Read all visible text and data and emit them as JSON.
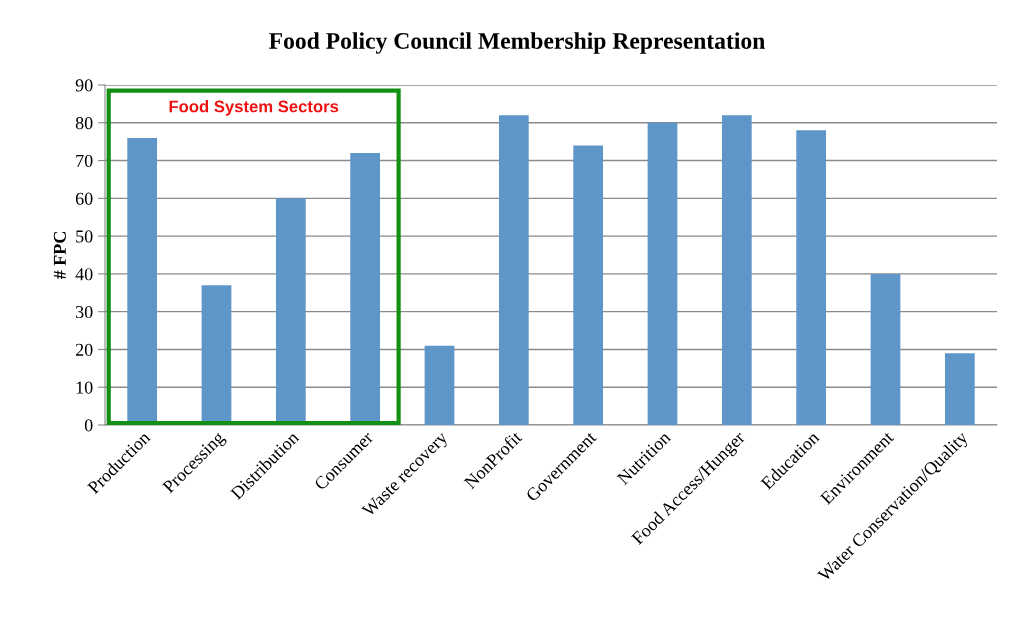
{
  "chart_data": {
    "type": "bar",
    "title": "Food Policy Council Membership Representation",
    "ylabel": "# FPC",
    "categories": [
      "Production",
      "Processing",
      "Distribution",
      "Consumer",
      "Waste recovery",
      "NonProfit",
      "Government",
      "Nutrition",
      "Food Access/Hunger",
      "Education",
      "Environment",
      "Water Conservation/Quality"
    ],
    "values": [
      76,
      37,
      60,
      72,
      21,
      82,
      74,
      80,
      82,
      78,
      40,
      19
    ],
    "color": "#5f96c9",
    "ylim": [
      0,
      90
    ],
    "yticks": [
      0,
      10,
      20,
      30,
      40,
      50,
      60,
      70,
      80,
      90
    ],
    "grid": "y",
    "annotations": [
      "Food System Sectors"
    ]
  }
}
